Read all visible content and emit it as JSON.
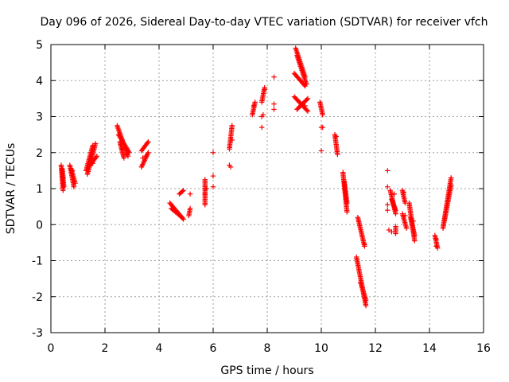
{
  "chart_data": {
    "type": "scatter",
    "title": "Day 096 of 2026, Sidereal Day-to-day VTEC variation (SDTVAR) for receiver vfch",
    "xlabel": "GPS time / hours",
    "ylabel": "SDTVAR / TECUs",
    "xlim": [
      0,
      16
    ],
    "ylim": [
      -3,
      5
    ],
    "xticks": [
      "0",
      "2",
      "4",
      "6",
      "8",
      "10",
      "12",
      "14",
      "16"
    ],
    "yticks": [
      "-3",
      "-2",
      "-1",
      "0",
      "1",
      "2",
      "3",
      "4",
      "5"
    ],
    "grid": true,
    "marker": "plus",
    "color": "#ff0000",
    "segments": [
      {
        "x0": 0.38,
        "x1": 0.45,
        "y0": 1.65,
        "y1": 0.95
      },
      {
        "x0": 0.42,
        "x1": 0.48,
        "y0": 1.55,
        "y1": 1.05
      },
      {
        "x0": 0.7,
        "x1": 0.85,
        "y0": 1.65,
        "y1": 1.05
      },
      {
        "x0": 0.75,
        "x1": 0.9,
        "y0": 1.55,
        "y1": 1.15
      },
      {
        "x0": 1.3,
        "x1": 1.55,
        "y0": 1.5,
        "y1": 2.2
      },
      {
        "x0": 1.35,
        "x1": 1.65,
        "y0": 1.4,
        "y1": 2.25
      },
      {
        "x0": 1.4,
        "x1": 1.7,
        "y0": 1.6,
        "y1": 1.9
      },
      {
        "x0": 2.45,
        "x1": 2.85,
        "y0": 2.75,
        "y1": 1.9
      },
      {
        "x0": 2.5,
        "x1": 2.9,
        "y0": 2.5,
        "y1": 2.0
      },
      {
        "x0": 2.55,
        "x1": 2.7,
        "y0": 2.3,
        "y1": 1.85
      },
      {
        "x0": 3.35,
        "x1": 3.6,
        "y0": 1.6,
        "y1": 2.0
      },
      {
        "x0": 3.35,
        "x1": 3.6,
        "y0": 2.05,
        "y1": 2.3
      },
      {
        "x0": 4.4,
        "x1": 4.9,
        "y0": 0.6,
        "y1": 0.15
      },
      {
        "x0": 4.45,
        "x1": 4.85,
        "y0": 0.45,
        "y1": 0.2
      },
      {
        "x0": 4.75,
        "x1": 4.9,
        "y0": 0.85,
        "y1": 0.95
      },
      {
        "x0": 5.1,
        "x1": 5.15,
        "y0": 0.25,
        "y1": 0.45
      },
      {
        "x0": 5.7,
        "x1": 5.7,
        "y0": 0.55,
        "y1": 1.25
      },
      {
        "x0": 6.6,
        "x1": 6.7,
        "y0": 2.1,
        "y1": 2.75
      },
      {
        "x0": 7.45,
        "x1": 7.55,
        "y0": 3.05,
        "y1": 3.4
      },
      {
        "x0": 7.8,
        "x1": 7.9,
        "y0": 3.4,
        "y1": 3.8
      },
      {
        "x0": 9.05,
        "x1": 9.4,
        "y0": 4.9,
        "y1": 4.1
      },
      {
        "x0": 9.1,
        "x1": 9.45,
        "y0": 4.7,
        "y1": 3.9
      },
      {
        "x0": 9.0,
        "x1": 9.4,
        "y0": 4.2,
        "y1": 3.85
      },
      {
        "x0": 9.0,
        "x1": 9.5,
        "y0": 3.55,
        "y1": 3.15
      },
      {
        "x0": 9.1,
        "x1": 9.5,
        "y0": 3.2,
        "y1": 3.5
      },
      {
        "x0": 9.95,
        "x1": 10.05,
        "y0": 3.4,
        "y1": 3.05
      },
      {
        "x0": 10.5,
        "x1": 10.6,
        "y0": 2.5,
        "y1": 1.95
      },
      {
        "x0": 10.8,
        "x1": 10.95,
        "y0": 1.45,
        "y1": 0.35
      },
      {
        "x0": 10.85,
        "x1": 10.95,
        "y0": 1.2,
        "y1": 0.6
      },
      {
        "x0": 11.35,
        "x1": 11.6,
        "y0": 0.2,
        "y1": -0.6
      },
      {
        "x0": 11.3,
        "x1": 11.65,
        "y0": -0.9,
        "y1": -2.25
      },
      {
        "x0": 11.45,
        "x1": 11.65,
        "y0": -1.6,
        "y1": -2.1
      },
      {
        "x0": 12.55,
        "x1": 12.75,
        "y0": 0.95,
        "y1": 0.3
      },
      {
        "x0": 12.6,
        "x1": 12.75,
        "y0": 0.7,
        "y1": 0.4
      },
      {
        "x0": 12.75,
        "x1": 12.75,
        "y0": -0.05,
        "y1": -0.25
      },
      {
        "x0": 13.0,
        "x1": 13.1,
        "y0": 0.95,
        "y1": 0.6
      },
      {
        "x0": 13.0,
        "x1": 13.15,
        "y0": 0.3,
        "y1": -0.1
      },
      {
        "x0": 13.25,
        "x1": 13.45,
        "y0": 0.6,
        "y1": -0.45
      },
      {
        "x0": 13.3,
        "x1": 13.45,
        "y0": 0.2,
        "y1": -0.3
      },
      {
        "x0": 14.2,
        "x1": 14.3,
        "y0": -0.3,
        "y1": -0.65
      },
      {
        "x0": 14.5,
        "x1": 14.8,
        "y0": -0.1,
        "y1": 1.3
      },
      {
        "x0": 14.55,
        "x1": 14.8,
        "y0": 0.1,
        "y1": 1.1
      }
    ],
    "points": [
      [
        0.45,
        1.3
      ],
      [
        0.8,
        1.5
      ],
      [
        1.5,
        1.75
      ],
      [
        1.55,
        1.7
      ],
      [
        2.65,
        2.1
      ],
      [
        2.8,
        1.95
      ],
      [
        3.4,
        1.85
      ],
      [
        3.5,
        1.9
      ],
      [
        5.15,
        0.85
      ],
      [
        5.7,
        0.85
      ],
      [
        5.75,
        1.0
      ],
      [
        6.0,
        1.35
      ],
      [
        6.0,
        1.05
      ],
      [
        6.0,
        2.0
      ],
      [
        6.6,
        1.65
      ],
      [
        6.65,
        1.6
      ],
      [
        6.7,
        2.35
      ],
      [
        7.5,
        3.3
      ],
      [
        7.8,
        2.7
      ],
      [
        7.8,
        3.0
      ],
      [
        7.85,
        3.05
      ],
      [
        7.9,
        3.75
      ],
      [
        8.25,
        4.1
      ],
      [
        8.25,
        3.35
      ],
      [
        8.25,
        3.2
      ],
      [
        9.2,
        3.4
      ],
      [
        9.4,
        3.3
      ],
      [
        10.0,
        2.05
      ],
      [
        10.0,
        2.7
      ],
      [
        10.05,
        2.7
      ],
      [
        10.55,
        2.45
      ],
      [
        11.6,
        -0.55
      ],
      [
        12.45,
        1.5
      ],
      [
        12.45,
        1.05
      ],
      [
        12.45,
        0.55
      ],
      [
        12.45,
        0.4
      ],
      [
        12.5,
        -0.15
      ],
      [
        12.6,
        -0.2
      ],
      [
        12.7,
        0.85
      ],
      [
        13.05,
        0.9
      ],
      [
        13.1,
        0.25
      ],
      [
        13.4,
        0.1
      ],
      [
        14.25,
        -0.4
      ],
      [
        14.25,
        -0.6
      ]
    ]
  }
}
